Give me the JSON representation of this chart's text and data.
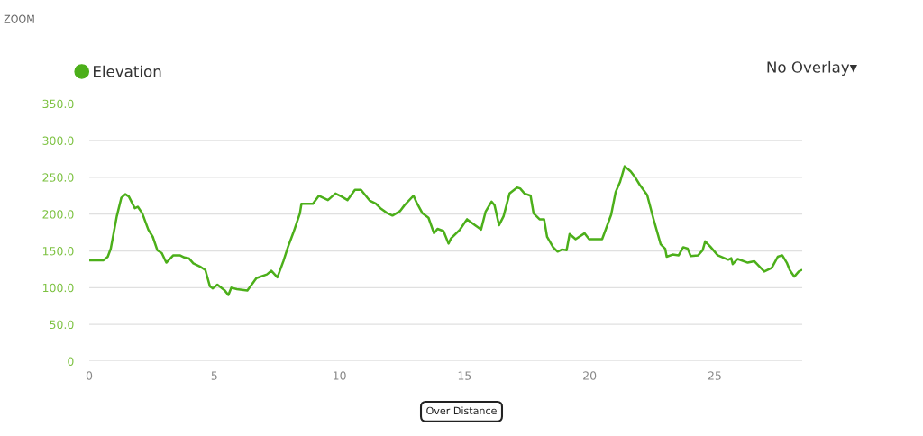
{
  "chart_data": {
    "type": "line",
    "x": [
      0,
      0.56,
      0.74,
      0.86,
      1.1,
      1.28,
      1.44,
      1.58,
      1.82,
      1.94,
      2.12,
      2.36,
      2.54,
      2.72,
      2.9,
      3.08,
      3.36,
      3.62,
      3.8,
      3.98,
      4.16,
      4.46,
      4.64,
      4.82,
      4.94,
      5.12,
      5.42,
      5.56,
      5.68,
      5.9,
      6.32,
      6.68,
      7.1,
      7.28,
      7.52,
      7.76,
      7.94,
      8.18,
      8.42,
      8.48,
      8.94,
      9.18,
      9.54,
      9.84,
      10.08,
      10.32,
      10.62,
      10.86,
      11.22,
      11.46,
      11.64,
      11.88,
      12.12,
      12.42,
      12.6,
      12.96,
      13.08,
      13.32,
      13.56,
      13.78,
      13.92,
      14.16,
      14.36,
      14.46,
      14.82,
      15.1,
      15.42,
      15.66,
      15.84,
      16.08,
      16.2,
      16.38,
      16.56,
      16.8,
      17.1,
      17.22,
      17.4,
      17.64,
      17.76,
      18.0,
      18.18,
      18.3,
      18.54,
      18.72,
      18.9,
      19.08,
      19.2,
      19.44,
      19.8,
      19.98,
      20.16,
      20.5,
      20.62,
      20.86,
      21.04,
      21.22,
      21.4,
      21.64,
      21.82,
      22.0,
      22.3,
      22.54,
      22.84,
      23.02,
      23.08,
      23.32,
      23.56,
      23.74,
      23.92,
      24.04,
      24.34,
      24.52,
      24.62,
      24.82,
      25.12,
      25.54,
      25.66,
      25.72,
      25.92,
      26.32,
      26.58,
      26.98,
      27.28,
      27.52,
      27.7,
      27.88,
      28.0,
      28.18,
      28.36,
      28.47
    ],
    "series": [
      {
        "name": "Elevation",
        "color": "#4caf1a",
        "values": [
          137,
          137,
          142,
          153,
          197,
          222,
          227,
          224,
          208,
          210,
          201,
          179,
          169,
          151,
          147,
          134,
          144,
          144,
          141,
          140,
          133,
          128,
          124,
          102,
          99,
          104,
          96,
          90,
          100,
          98,
          96,
          113,
          118,
          123,
          114,
          136,
          155,
          177,
          201,
          214,
          214,
          225,
          219,
          228,
          224,
          219,
          233,
          233,
          218,
          214,
          208,
          202,
          198,
          204,
          212,
          225,
          216,
          201,
          195,
          174,
          180,
          177,
          160,
          167,
          179,
          193,
          185,
          179,
          203,
          217,
          212,
          185,
          197,
          228,
          236,
          235,
          228,
          225,
          201,
          193,
          193,
          169,
          155,
          149,
          152,
          151,
          173,
          166,
          174,
          166,
          166,
          166,
          177,
          199,
          230,
          244,
          265,
          258,
          250,
          240,
          226,
          195,
          159,
          153,
          142,
          145,
          144,
          155,
          153,
          143,
          144,
          151,
          163,
          156,
          144,
          138,
          140,
          132,
          139,
          134,
          136,
          122,
          127,
          142,
          144,
          134,
          124,
          115,
          122,
          124
        ]
      }
    ],
    "xlim": [
      0,
      28.5
    ],
    "xticks": [
      0,
      5,
      10,
      15,
      20,
      25
    ],
    "ylim": [
      0,
      350
    ],
    "yticks": [
      0,
      {
        "value": 50,
        "label": "50.0"
      },
      {
        "value": 100,
        "label": "100.0"
      },
      {
        "value": 150,
        "label": "150.0"
      },
      {
        "value": 200,
        "label": "200.0"
      },
      {
        "value": 250,
        "label": "250.0"
      },
      {
        "value": 300,
        "label": "300.0"
      },
      {
        "value": 350,
        "label": "350.0"
      }
    ],
    "grid": "y",
    "legend": "top left",
    "marker": "none",
    "line_style": "solid",
    "annotations": [
      "ZOOM",
      "No Overlay▾",
      "Over Distance"
    ]
  }
}
